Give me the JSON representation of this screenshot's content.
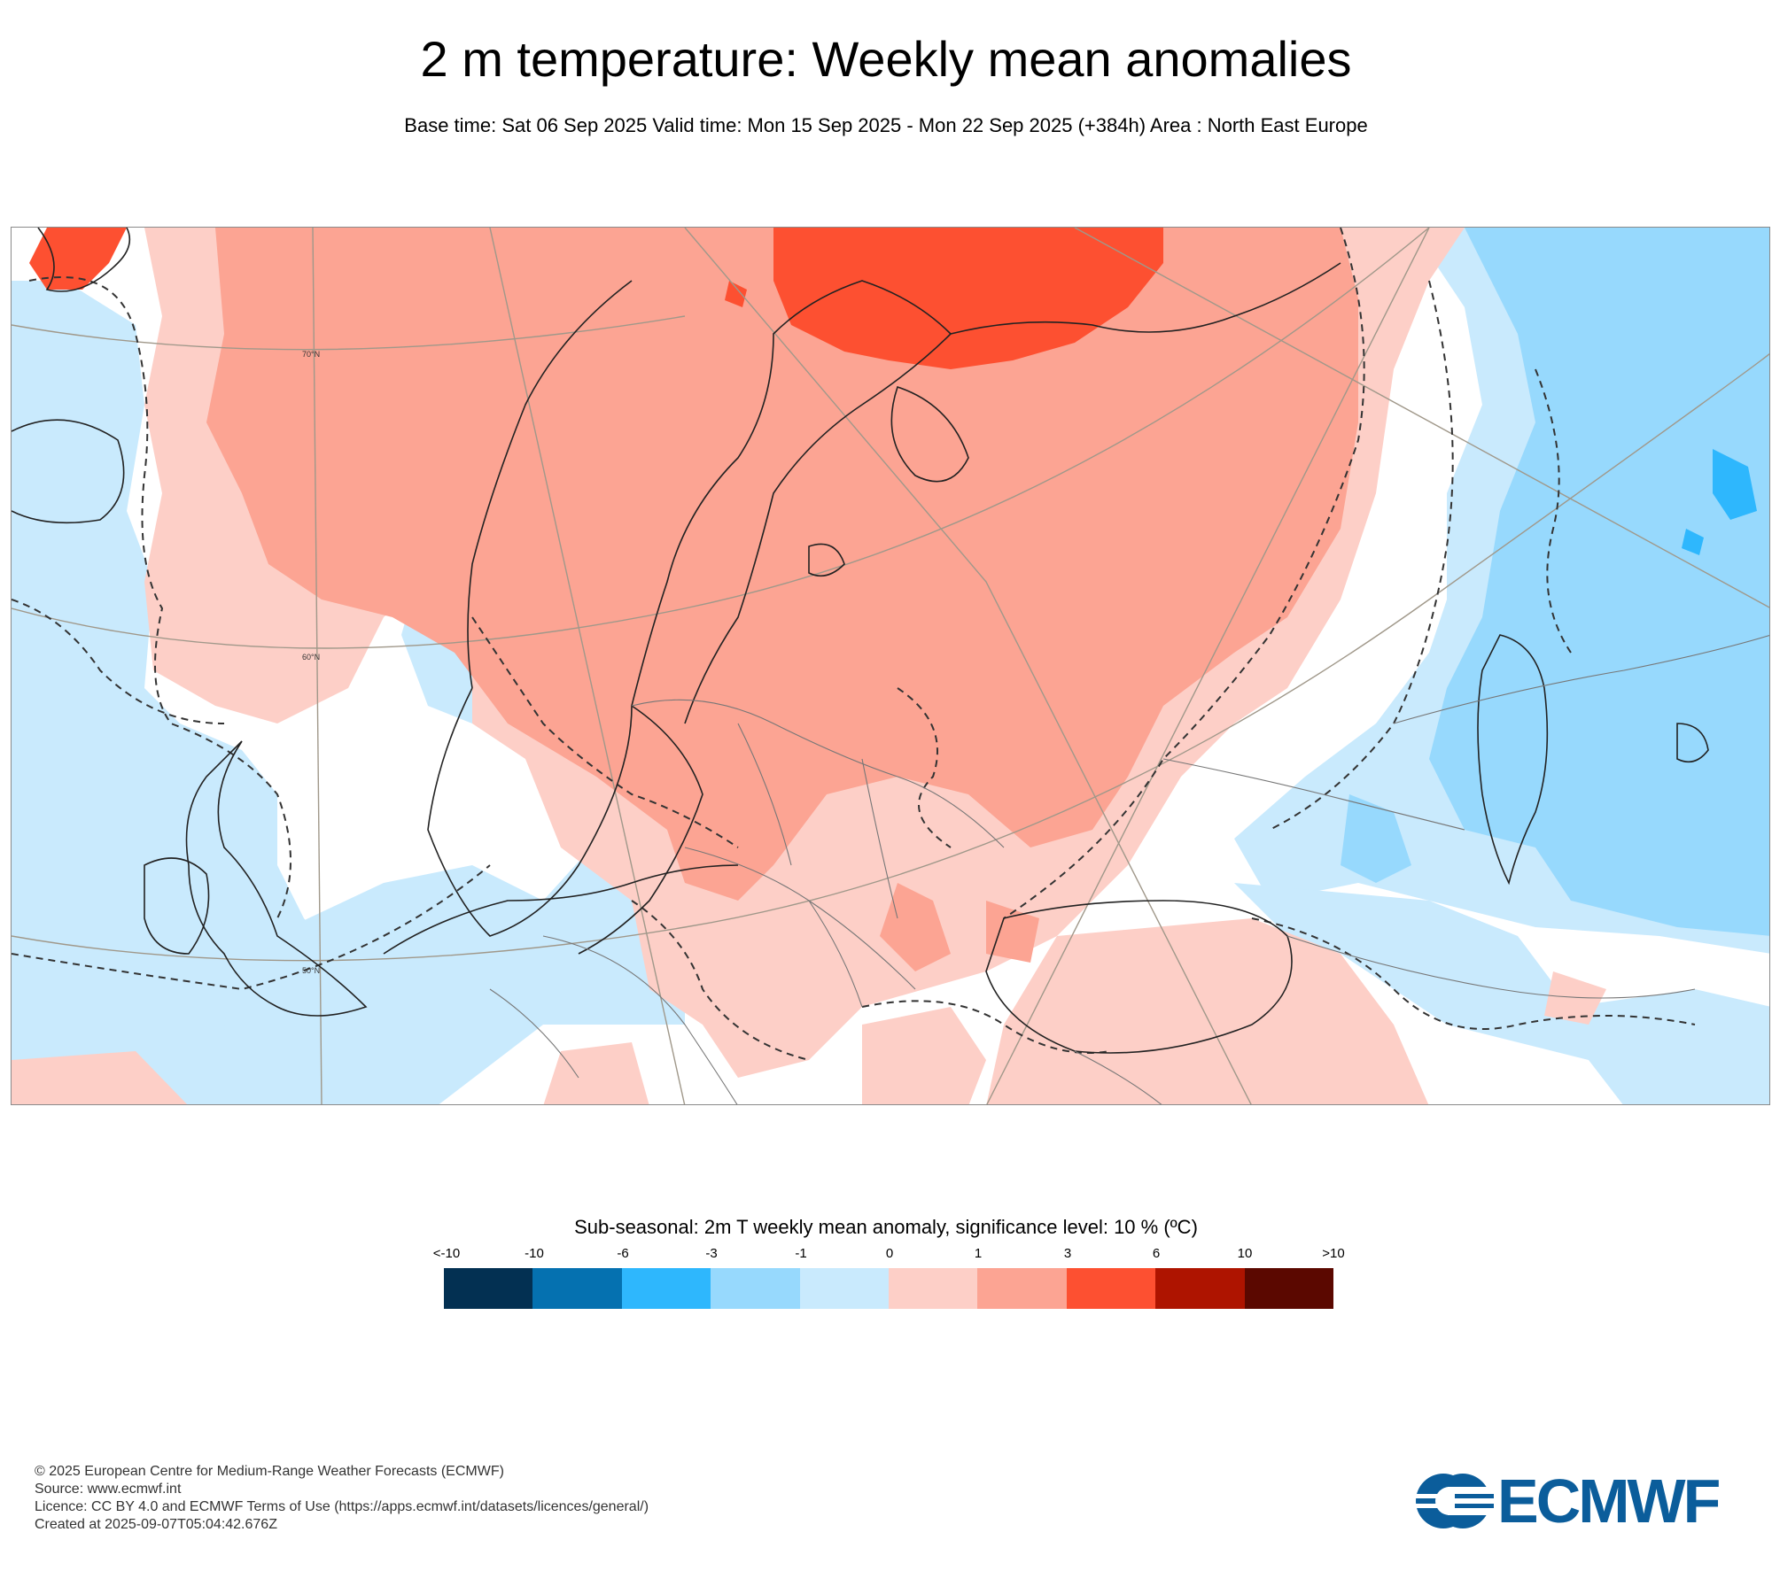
{
  "header": {
    "title": "2 m temperature: Weekly mean anomalies",
    "subtitle": "Base time: Sat 06 Sep 2025 Valid time: Mon 15 Sep 2025 - Mon 22 Sep 2025 (+384h) Area : North East Europe"
  },
  "map": {
    "area": "North East Europe",
    "graticule_labels": [
      "70°N",
      "60°N",
      "50°N"
    ],
    "colors": {
      "land_outline": "#222222",
      "border_line": "#777777",
      "graticule": "#a0988a",
      "significance_contour": "#333333"
    }
  },
  "legend": {
    "title": "Sub-seasonal: 2m T weekly mean anomaly, significance level: 10 % (ºC)",
    "tick_labels": [
      "<-10",
      "-10",
      "-6",
      "-3",
      "-1",
      "0",
      "1",
      "3",
      "6",
      "10",
      ">10"
    ],
    "bins": [
      {
        "range": "<-10 to -10",
        "color": "#033052"
      },
      {
        "range": "-10 to -6",
        "color": "#0571b0"
      },
      {
        "range": "-6 to -3",
        "color": "#2eb7fd"
      },
      {
        "range": "-3 to -1",
        "color": "#97d9fd"
      },
      {
        "range": "-1 to 0",
        "color": "#c9eafd"
      },
      {
        "range": "0 to 1",
        "color": "#fdcfc7"
      },
      {
        "range": "1 to 3",
        "color": "#fca493"
      },
      {
        "range": "3 to 6",
        "color": "#fd5031"
      },
      {
        "range": "6 to 10",
        "color": "#ae1400"
      },
      {
        "range": "10 to >10",
        "color": "#5b0800"
      }
    ]
  },
  "footer": {
    "copyright": "© 2025 European Centre for Medium-Range Weather Forecasts (ECMWF)",
    "source": "Source: www.ecmwf.int",
    "licence": "Licence: CC BY 4.0 and ECMWF Terms of Use (https://apps.ecmwf.int/datasets/licences/general/)",
    "created": "Created at 2025-09-07T05:04:42.676Z"
  },
  "logo": {
    "text": "ECMWF",
    "color": "#0b5d9b"
  }
}
